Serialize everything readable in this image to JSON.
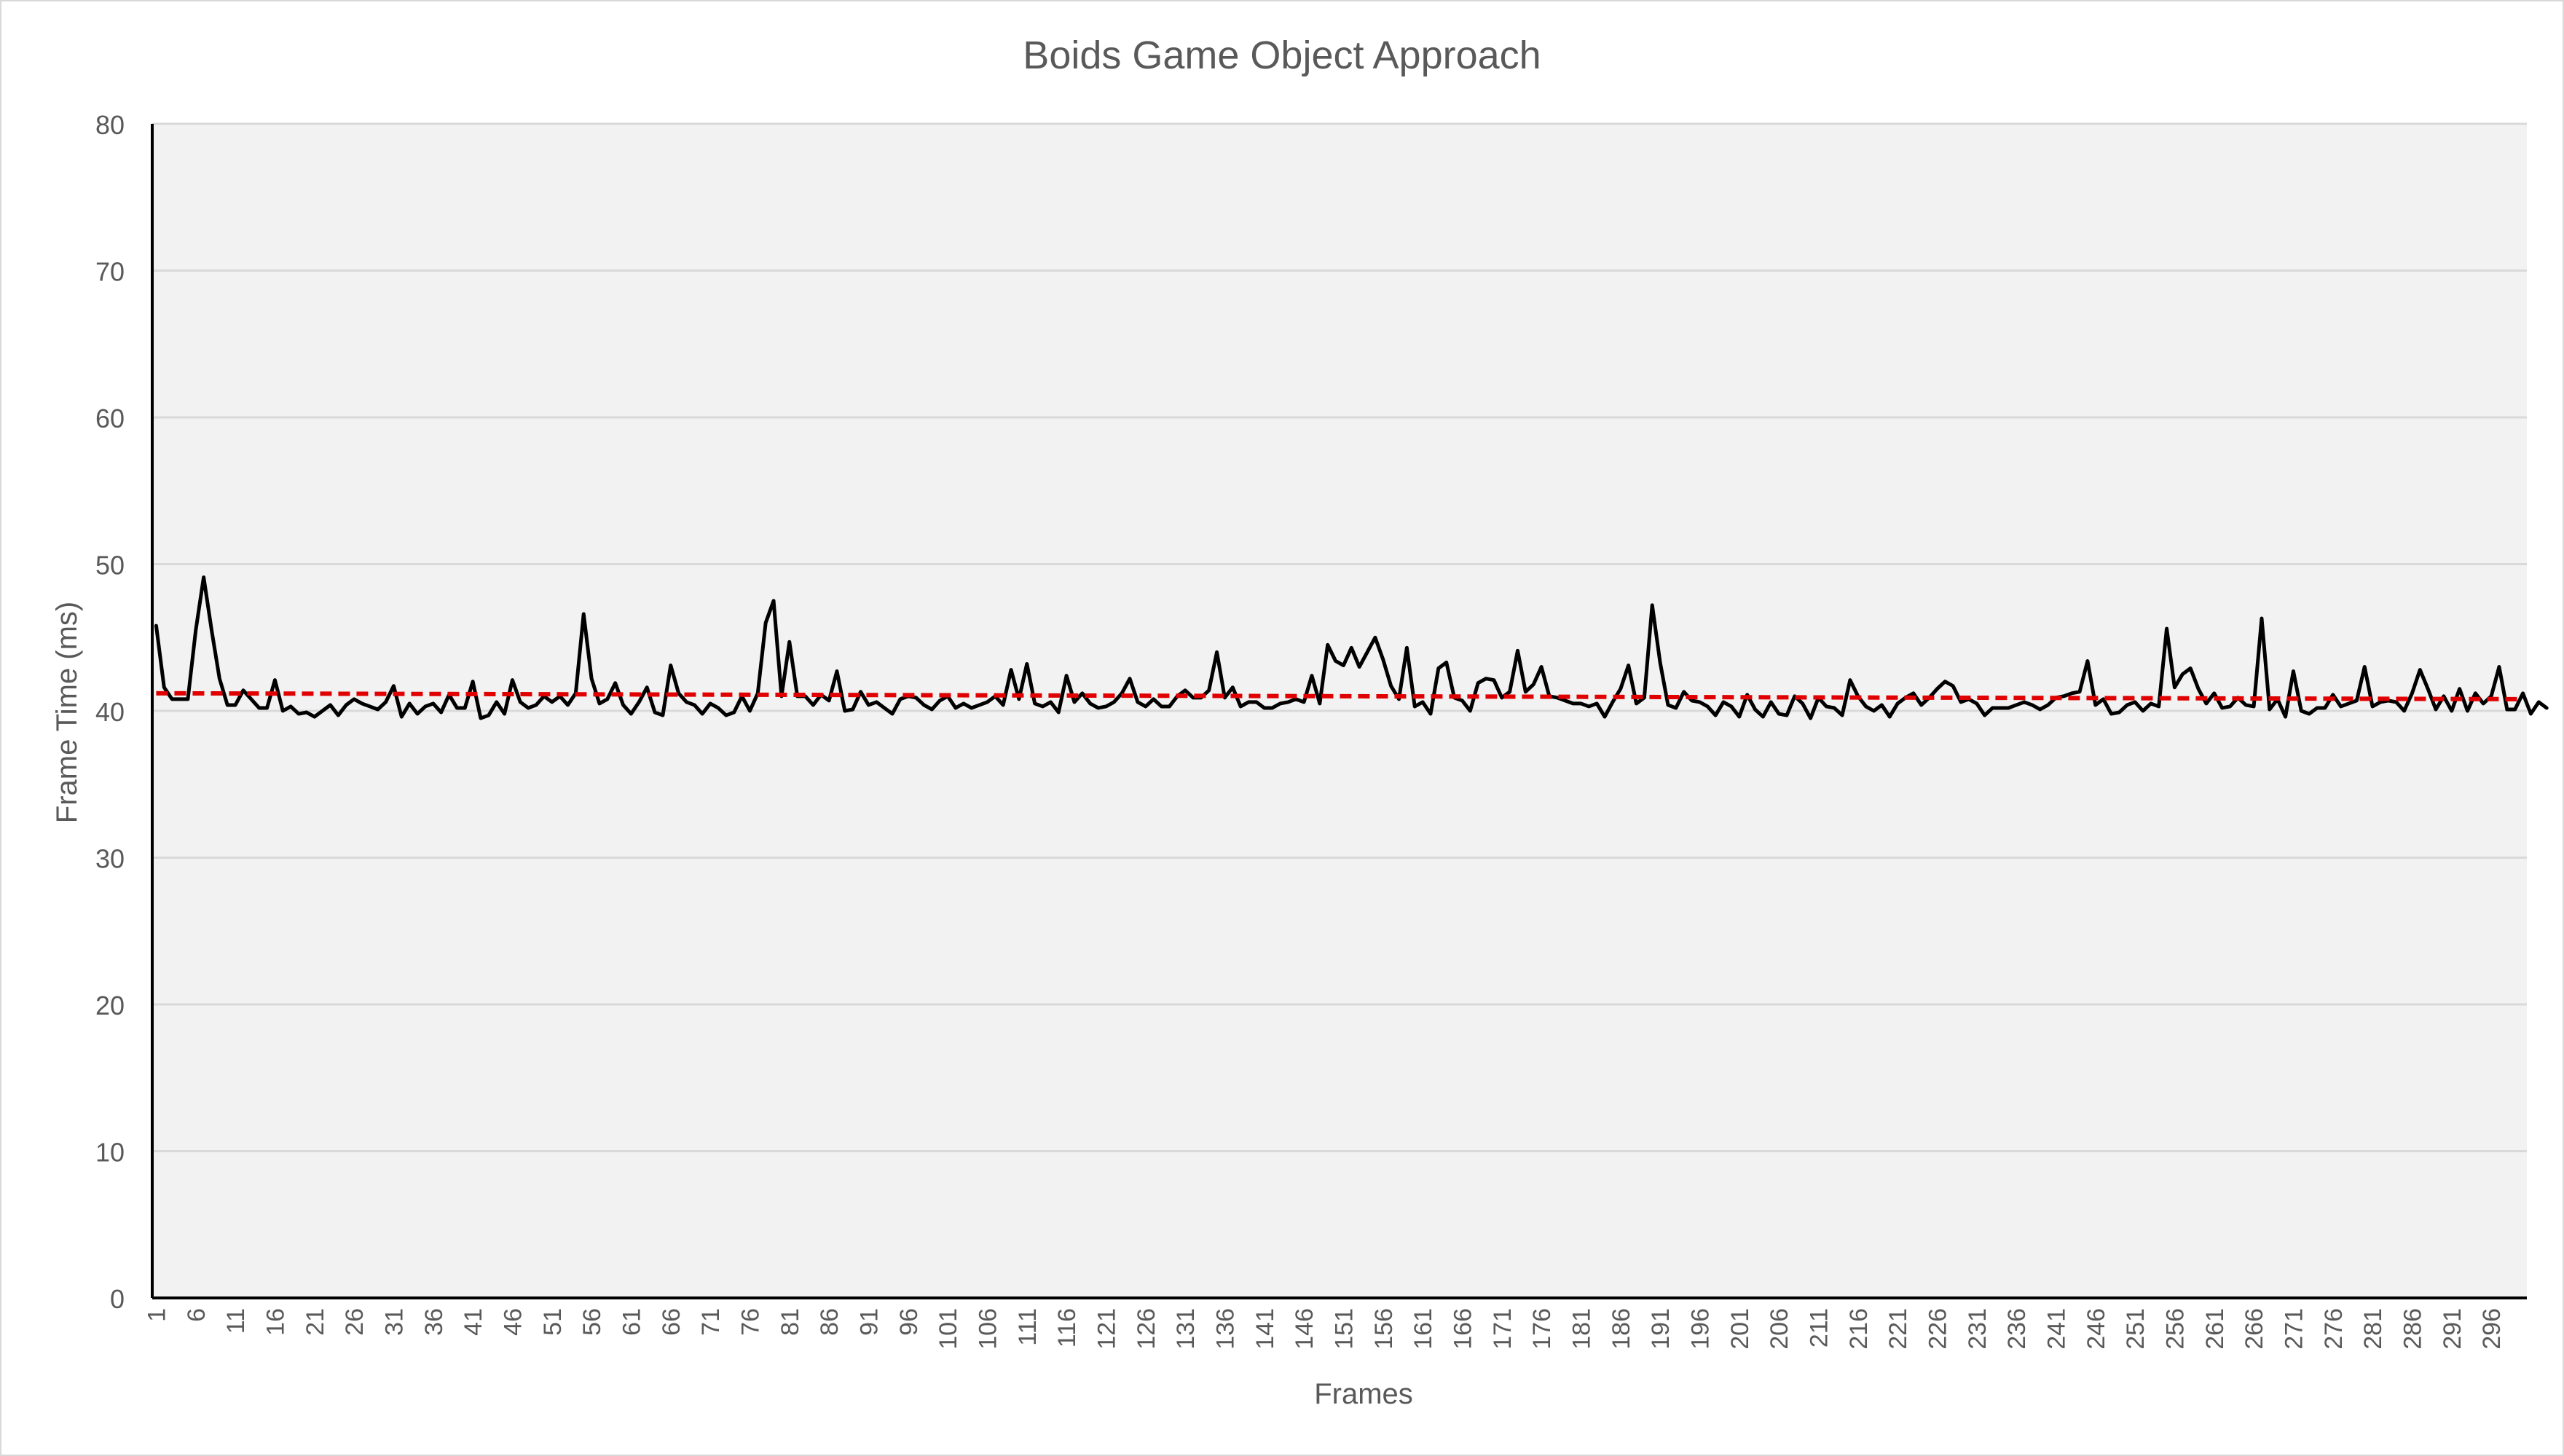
{
  "chart_data": {
    "type": "line",
    "title": "Boids Game Object Approach",
    "xlabel": "Frames",
    "ylabel": "Frame Time (ms)",
    "ylim": [
      0,
      80
    ],
    "yticks": [
      0,
      10,
      20,
      30,
      40,
      50,
      60,
      70,
      80
    ],
    "xlim": [
      1,
      300
    ],
    "xtick_start": 1,
    "xtick_step": 5,
    "xtick_end": 296,
    "grid": true,
    "legend": "none",
    "colors": {
      "plot_background": "#f2f2f2",
      "gridline": "#d9d9d9",
      "series": "#000000",
      "trendline": "#e00000",
      "axis": "#000000",
      "text": "#595959"
    },
    "series": [
      {
        "kind": "series",
        "x_start": 1,
        "values": [
          45.8,
          41.6,
          40.8,
          40.8,
          40.8,
          45.5,
          49.1,
          45.5,
          42.2,
          40.4,
          40.4,
          41.4,
          40.8,
          40.2,
          40.2,
          42.1,
          40.0,
          40.3,
          39.8,
          39.9,
          39.6,
          40.0,
          40.4,
          39.7,
          40.4,
          40.8,
          40.5,
          40.3,
          40.1,
          40.6,
          41.7,
          39.6,
          40.5,
          39.8,
          40.3,
          40.5,
          39.9,
          41.1,
          40.2,
          40.2,
          42.0,
          39.5,
          39.7,
          40.6,
          39.8,
          42.1,
          40.6,
          40.2,
          40.4,
          41.0,
          40.6,
          41.0,
          40.4,
          41.2,
          46.6,
          42.2,
          40.5,
          40.8,
          41.9,
          40.4,
          39.8,
          40.6,
          41.6,
          39.9,
          39.7,
          43.1,
          41.2,
          40.6,
          40.4,
          39.8,
          40.5,
          40.2,
          39.7,
          39.9,
          41.0,
          40.0,
          41.2,
          46.0,
          47.5,
          41.0,
          44.7,
          41.0,
          41.0,
          40.4,
          41.1,
          40.7,
          42.7,
          40.0,
          40.1,
          41.3,
          40.4,
          40.6,
          40.2,
          39.8,
          40.8,
          41.0,
          40.9,
          40.4,
          40.1,
          40.7,
          41.0,
          40.2,
          40.5,
          40.2,
          40.4,
          40.6,
          41.0,
          40.4,
          42.8,
          40.8,
          43.2,
          40.5,
          40.3,
          40.6,
          39.9,
          42.4,
          40.6,
          41.2,
          40.5,
          40.2,
          40.3,
          40.6,
          41.2,
          42.2,
          40.6,
          40.3,
          40.8,
          40.3,
          40.3,
          41.0,
          41.4,
          40.9,
          40.9,
          41.4,
          44.0,
          40.9,
          41.6,
          40.3,
          40.6,
          40.6,
          40.2,
          40.2,
          40.5,
          40.6,
          40.8,
          40.6,
          42.4,
          40.5,
          44.5,
          43.4,
          43.1,
          44.3,
          43.0,
          44.0,
          45.0,
          43.5,
          41.7,
          40.8,
          44.3,
          40.3,
          40.6,
          39.8,
          42.9,
          43.3,
          40.9,
          40.7,
          40.0,
          41.9,
          42.2,
          42.1,
          40.9,
          41.3,
          44.1,
          41.3,
          41.8,
          43.0,
          41.0,
          40.9,
          40.7,
          40.5,
          40.5,
          40.3,
          40.5,
          39.6,
          40.6,
          41.5,
          43.1,
          40.5,
          40.9,
          47.2,
          43.3,
          40.4,
          40.2,
          41.3,
          40.7,
          40.6,
          40.3,
          39.7,
          40.6,
          40.3,
          39.6,
          41.1,
          40.1,
          39.6,
          40.6,
          39.8,
          39.7,
          41.0,
          40.5,
          39.5,
          40.9,
          40.3,
          40.2,
          39.7,
          42.1,
          41.0,
          40.3,
          40.0,
          40.4,
          39.6,
          40.5,
          40.9,
          41.2,
          40.4,
          40.9,
          41.5,
          42.0,
          41.7,
          40.6,
          40.8,
          40.5,
          39.7,
          40.2,
          40.2,
          40.2,
          40.4,
          40.6,
          40.4,
          40.1,
          40.4,
          40.9,
          41.0,
          41.2,
          41.3,
          43.4,
          40.4,
          40.8,
          39.8,
          39.9,
          40.4,
          40.6,
          40.0,
          40.5,
          40.3,
          45.6,
          41.6,
          42.5,
          42.9,
          41.5,
          40.5,
          41.2,
          40.2,
          40.3,
          40.9,
          40.4,
          40.3,
          46.3,
          40.1,
          40.8,
          39.6,
          42.7,
          40.0,
          39.8,
          40.2,
          40.2,
          41.1,
          40.3,
          40.5,
          40.7,
          43.0,
          40.3,
          40.6,
          40.7,
          40.6,
          40.0,
          41.2,
          42.8,
          41.5,
          40.1,
          41.0,
          40.0,
          41.5,
          40.0,
          41.2,
          40.5,
          41.0,
          43.0,
          40.1,
          40.1,
          41.2,
          39.8,
          40.6,
          40.2
        ]
      },
      {
        "kind": "linear-trendline",
        "start": 41.2,
        "end": 40.8
      }
    ]
  }
}
